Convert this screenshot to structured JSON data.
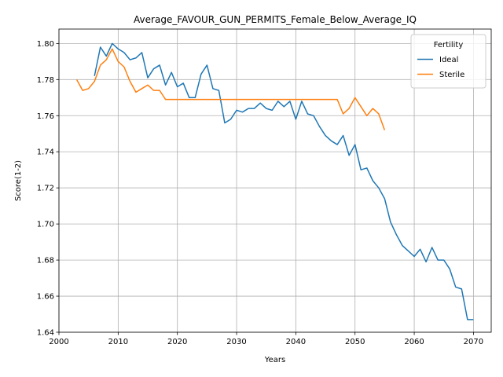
{
  "chart_data": {
    "type": "line",
    "title": "Average_FAVOUR_GUN_PERMITS_Female_Below_Average_IQ",
    "xlabel": "Years",
    "ylabel": "Score(1-2)",
    "xlim": [
      2000,
      2073
    ],
    "ylim": [
      1.64,
      1.808
    ],
    "x_ticks": [
      "2000",
      "2010",
      "2020",
      "2030",
      "2040",
      "2050",
      "2060",
      "2070"
    ],
    "y_ticks": [
      "1.64",
      "1.66",
      "1.68",
      "1.70",
      "1.72",
      "1.74",
      "1.76",
      "1.78",
      "1.80"
    ],
    "grid": true,
    "legend_title": "Fertility",
    "legend_position": "top-right",
    "series": [
      {
        "name": "Ideal",
        "color": "#1f77b4",
        "x": [
          2006,
          2007,
          2008,
          2009,
          2010,
          2011,
          2012,
          2013,
          2014,
          2015,
          2016,
          2017,
          2018,
          2019,
          2020,
          2021,
          2022,
          2023,
          2024,
          2025,
          2026,
          2027,
          2028,
          2029,
          2030,
          2031,
          2032,
          2033,
          2034,
          2035,
          2036,
          2037,
          2038,
          2039,
          2040,
          2041,
          2042,
          2043,
          2044,
          2045,
          2046,
          2047,
          2048,
          2049,
          2050,
          2051,
          2052,
          2053,
          2054,
          2055,
          2056,
          2057,
          2058,
          2059,
          2060,
          2061,
          2062,
          2063,
          2064,
          2065,
          2066,
          2067,
          2068,
          2069,
          2070
        ],
        "values": [
          1.782,
          1.798,
          1.793,
          1.8,
          1.797,
          1.795,
          1.791,
          1.792,
          1.795,
          1.781,
          1.786,
          1.788,
          1.777,
          1.784,
          1.776,
          1.778,
          1.77,
          1.77,
          1.783,
          1.788,
          1.775,
          1.774,
          1.756,
          1.758,
          1.763,
          1.762,
          1.764,
          1.764,
          1.767,
          1.764,
          1.763,
          1.768,
          1.765,
          1.768,
          1.758,
          1.768,
          1.761,
          1.76,
          1.754,
          1.749,
          1.746,
          1.744,
          1.749,
          1.738,
          1.744,
          1.73,
          1.731,
          1.724,
          1.72,
          1.714,
          1.701,
          1.694,
          1.688,
          1.685,
          1.682,
          1.686,
          1.679,
          1.687,
          1.68,
          1.68,
          1.675,
          1.665,
          1.664,
          1.647,
          1.647
        ]
      },
      {
        "name": "Sterile",
        "color": "#ff7f0e",
        "x": [
          2003,
          2004,
          2005,
          2006,
          2007,
          2008,
          2009,
          2010,
          2011,
          2012,
          2013,
          2014,
          2015,
          2016,
          2017,
          2018,
          2019,
          2020,
          2021,
          2022,
          2023,
          2024,
          2025,
          2026,
          2027,
          2028,
          2029,
          2030,
          2031,
          2032,
          2033,
          2034,
          2035,
          2036,
          2037,
          2038,
          2039,
          2040,
          2041,
          2042,
          2043,
          2044,
          2045,
          2046,
          2047,
          2048,
          2049,
          2050,
          2051,
          2052,
          2053,
          2054,
          2055
        ],
        "values": [
          1.78,
          1.774,
          1.775,
          1.779,
          1.788,
          1.791,
          1.797,
          1.79,
          1.787,
          1.779,
          1.773,
          1.775,
          1.777,
          1.774,
          1.774,
          1.769,
          1.769,
          1.769,
          1.769,
          1.769,
          1.769,
          1.769,
          1.769,
          1.769,
          1.769,
          1.769,
          1.769,
          1.769,
          1.769,
          1.769,
          1.769,
          1.769,
          1.769,
          1.769,
          1.769,
          1.769,
          1.769,
          1.769,
          1.769,
          1.769,
          1.769,
          1.769,
          1.769,
          1.769,
          1.769,
          1.761,
          1.764,
          1.77,
          1.765,
          1.76,
          1.764,
          1.761,
          1.752
        ]
      }
    ]
  }
}
